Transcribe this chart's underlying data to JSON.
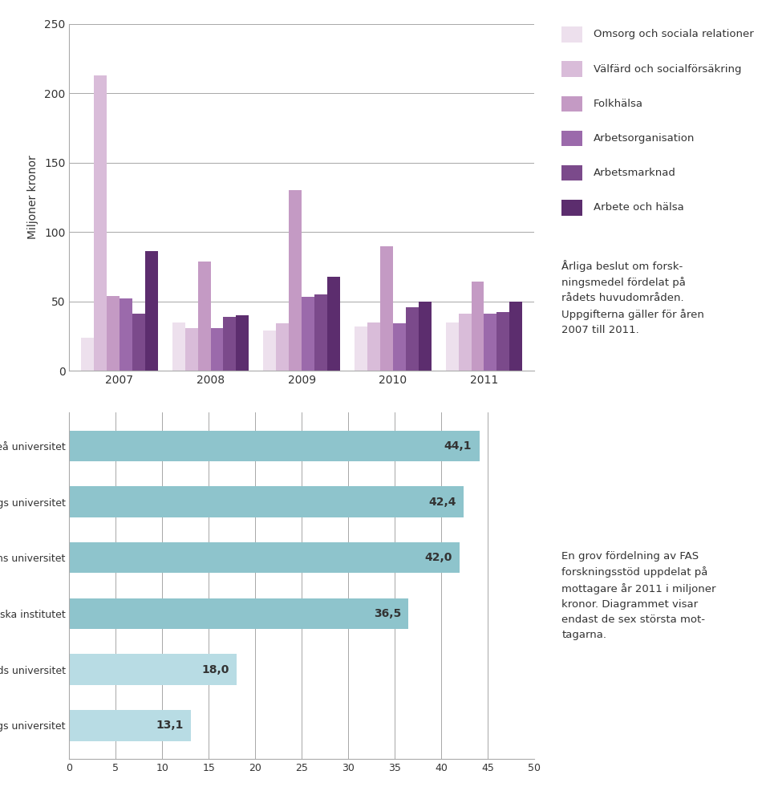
{
  "bar_categories": [
    2007,
    2008,
    2009,
    2010,
    2011
  ],
  "bar_series": {
    "Omsorg och sociala relationer": [
      24,
      35,
      29,
      32,
      35
    ],
    "Välfärd och socialförsäkring": [
      213,
      31,
      34,
      35,
      41
    ],
    "Folkhälsa": [
      54,
      79,
      130,
      90,
      64
    ],
    "Arbetsorganisation": [
      52,
      31,
      53,
      34,
      41
    ],
    "Arbetsmarknad": [
      41,
      39,
      55,
      46,
      42
    ],
    "Arbete och hälsa": [
      86,
      40,
      68,
      50,
      50
    ]
  },
  "bar_colors": [
    "#ede0ed",
    "#d9bcd9",
    "#c49ac4",
    "#9b6aab",
    "#7b4a8b",
    "#5c2d6e"
  ],
  "bar_ylabel": "Miljoner kronor",
  "bar_ylim": [
    0,
    250
  ],
  "bar_yticks": [
    0,
    50,
    100,
    150,
    200,
    250
  ],
  "legend_labels": [
    "Omsorg och sociala relationer",
    "Välfärd och socialförsäkring",
    "Folkhälsa",
    "Arbetsorganisation",
    "Arbetsmarknad",
    "Arbete och hälsa"
  ],
  "annotation_top": "Årliga beslut om forsk-\nningsmedel fördelat på\nrådets huvudområden.\nUppgifterna gäller för åren\n2007 till 2011.",
  "horiz_labels": [
    "Umeå universitet",
    "Göteborgs universitet",
    "Stockholms universitet",
    "Karolinska institutet",
    "Lunds universitet",
    "Linköpings universitet"
  ],
  "horiz_values": [
    44.1,
    42.4,
    42.0,
    36.5,
    18.0,
    13.1
  ],
  "horiz_bar_color_dark": "#8ec4cc",
  "horiz_bar_color_light": "#b8dce4",
  "horiz_xlim": [
    0,
    50
  ],
  "horiz_xticks": [
    0,
    5,
    10,
    15,
    20,
    25,
    30,
    35,
    40,
    45,
    50
  ],
  "annotation_bottom": "En grov fördelning av FAS\nforskningsstöd uppdelat på\nmottagare år 2011 i miljoner\nkronor. Diagrammet visar\nendast de sex största mot-\ntagarna.",
  "background_color": "#ffffff",
  "gridline_color": "#999999",
  "text_color": "#333333",
  "spine_color": "#aaaaaa"
}
